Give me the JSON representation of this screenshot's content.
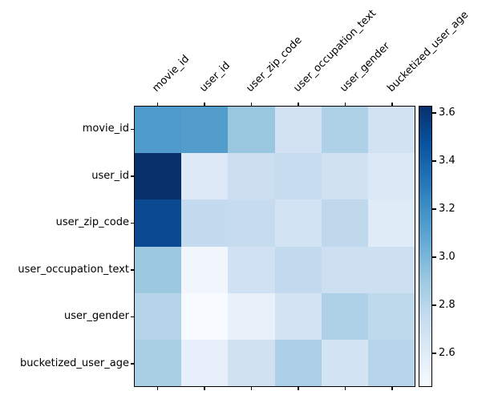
{
  "chart_data": {
    "type": "heatmap",
    "title": "",
    "colormap": "Blues",
    "rows": [
      "movie_id",
      "user_id",
      "user_zip_code",
      "user_occupation_text",
      "user_gender",
      "bucketized_user_age"
    ],
    "columns": [
      "movie_id",
      "user_id",
      "user_zip_code",
      "user_occupation_text",
      "user_gender",
      "bucketized_user_age"
    ],
    "values": [
      [
        3.13,
        3.12,
        2.9,
        2.66,
        2.85,
        2.66
      ],
      [
        3.63,
        2.61,
        2.71,
        2.75,
        2.69,
        2.62
      ],
      [
        3.5,
        2.76,
        2.75,
        2.66,
        2.79,
        2.59
      ],
      [
        2.9,
        2.5,
        2.69,
        2.78,
        2.71,
        2.71
      ],
      [
        2.82,
        2.46,
        2.55,
        2.66,
        2.85,
        2.79
      ],
      [
        2.86,
        2.55,
        2.69,
        2.86,
        2.66,
        2.81
      ]
    ],
    "cell_colors": [
      [
        "#4f9bcb",
        "#539dcc",
        "#9ac7e0",
        "#d2e2f2",
        "#aed1e7",
        "#d2e2f2"
      ],
      [
        "#09306b",
        "#dde9f6",
        "#cbdff1",
        "#c7dcef",
        "#d0e2f2",
        "#dbe8f5"
      ],
      [
        "#0b4a91",
        "#c4daee",
        "#c6dbee",
        "#d2e3f3",
        "#bfd8ec",
        "#dfebf7"
      ],
      [
        "#9cc8e0",
        "#f0f6fc",
        "#cfe1f2",
        "#c2d9ee",
        "#cde0f1",
        "#cde0f1"
      ],
      [
        "#b5d4ea",
        "#f7fbff",
        "#e8f1fa",
        "#d4e4f3",
        "#aed1e7",
        "#bed8ec"
      ],
      [
        "#a9cfe5",
        "#e6effa",
        "#d0e2f2",
        "#aacfe6",
        "#d3e4f3",
        "#b7d5ea"
      ]
    ],
    "colorbar": {
      "ticks": [
        3.6,
        3.4,
        3.2,
        3.0,
        2.8,
        2.6
      ],
      "vmin": 2.46,
      "vmax": 3.63,
      "gradient_top_to_bottom": [
        "#08306b",
        "#08519c",
        "#2171b5",
        "#4292c6",
        "#6baed6",
        "#9ecae1",
        "#c6dbef",
        "#deebf7",
        "#f7fbff"
      ]
    },
    "axis_edge_color": "#000000",
    "background_color": "#ffffff",
    "legend_position": "right-colorbar",
    "grid": false
  }
}
